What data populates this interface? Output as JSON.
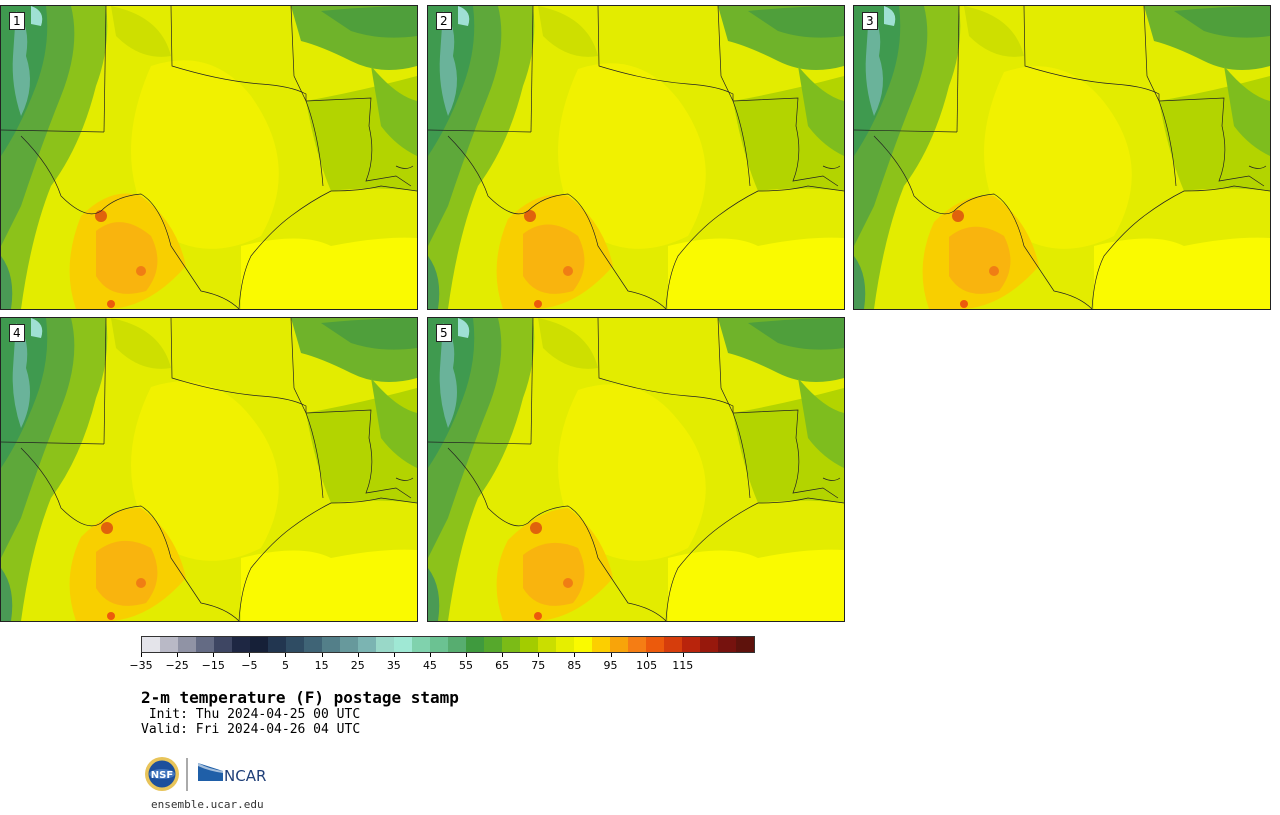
{
  "panels": [
    {
      "label": "1"
    },
    {
      "label": "2"
    },
    {
      "label": "3"
    },
    {
      "label": "4"
    },
    {
      "label": "5"
    }
  ],
  "colorbar": {
    "colors": [
      "#e4e4ea",
      "#b9b9c6",
      "#9093a5",
      "#646b84",
      "#3e4663",
      "#1e2743",
      "#162038",
      "#223650",
      "#2f4c63",
      "#3f6476",
      "#537f89",
      "#67999c",
      "#7bb4b2",
      "#99d8c8",
      "#9fe8d4",
      "#80d2ad",
      "#6bc292",
      "#57ad70",
      "#3f9a3e",
      "#56a82c",
      "#7bbb17",
      "#a3cc00",
      "#cade00",
      "#e6ee00",
      "#fafa00",
      "#fccf00",
      "#f8a40a",
      "#f57d14",
      "#ec5a0c",
      "#d63d0c",
      "#b9240c",
      "#97180c",
      "#76120e",
      "#5e120c"
    ],
    "ticks": [
      "−35",
      "−25",
      "−15",
      "−5",
      "5",
      "15",
      "25",
      "35",
      "45",
      "55",
      "65",
      "75",
      "85",
      "95",
      "105",
      "115"
    ]
  },
  "title": "2-m temperature (F) postage stamp",
  "init": " Init: Thu 2024-04-25 00 UTC",
  "valid": "Valid: Fri 2024-04-26 04 UTC",
  "logo": {
    "nsf_text": "NSF",
    "ncar_text": "NCAR"
  },
  "footer": "ensemble.ucar.edu"
}
